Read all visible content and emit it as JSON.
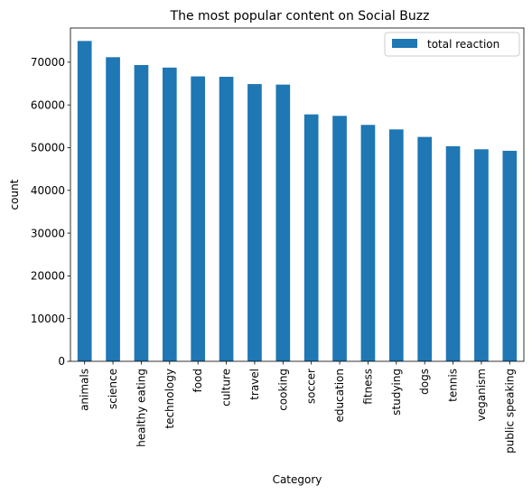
{
  "chart_data": {
    "type": "bar",
    "title": "The most popular content on Social Buzz",
    "xlabel": "Category",
    "ylabel": "count",
    "categories": [
      "animals",
      "science",
      "healthy eating",
      "technology",
      "food",
      "culture",
      "travel",
      "cooking",
      "soccer",
      "education",
      "fitness",
      "studying",
      "dogs",
      "tennis",
      "veganism",
      "public speaking"
    ],
    "series": [
      {
        "name": "total reaction",
        "color": "#1f77b4",
        "values": [
          74965,
          71168,
          69339,
          68738,
          66676,
          66579,
          64880,
          64756,
          57783,
          57436,
          55323,
          54269,
          52511,
          50339,
          49619,
          49264
        ]
      }
    ],
    "ylim": [
      0,
      78000
    ],
    "yticks": [
      0,
      10000,
      20000,
      30000,
      40000,
      50000,
      60000,
      70000
    ],
    "grid": false,
    "legend_position": "top-right"
  }
}
